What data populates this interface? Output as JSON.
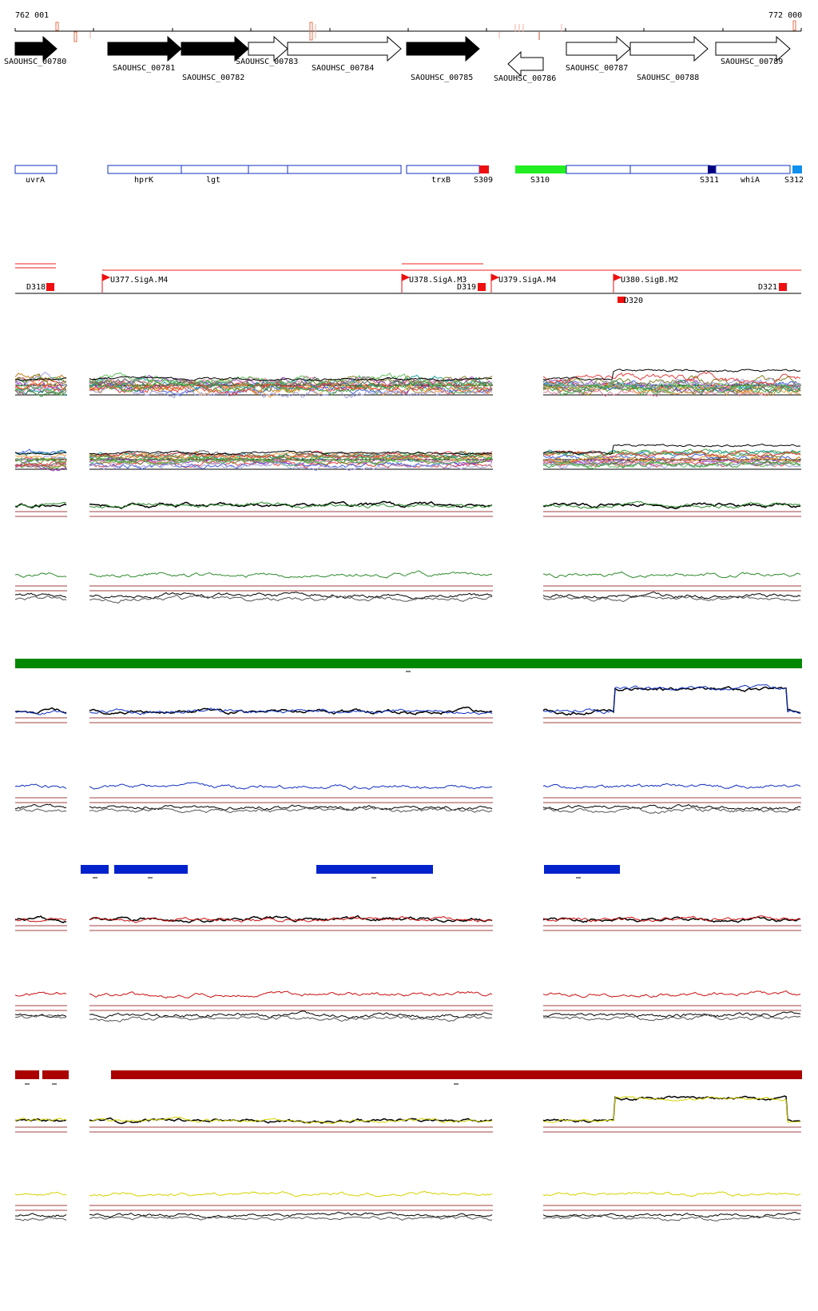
{
  "coord_range": {
    "start_label": "762 001",
    "end_label": "772 000"
  },
  "genes": [
    {
      "name": "SAOUHSC_00780",
      "strand": "+",
      "filled": true
    },
    {
      "name": "SAOUHSC_00781",
      "strand": "+",
      "filled": true
    },
    {
      "name": "SAOUHSC_00782",
      "strand": "+",
      "filled": true
    },
    {
      "name": "SAOUHSC_00783",
      "strand": "+",
      "filled": false
    },
    {
      "name": "SAOUHSC_00784",
      "strand": "+",
      "filled": false
    },
    {
      "name": "SAOUHSC_00785",
      "strand": "+",
      "filled": true
    },
    {
      "name": "SAOUHSC_00786",
      "strand": "-",
      "filled": false
    },
    {
      "name": "SAOUHSC_00787",
      "strand": "+",
      "filled": false
    },
    {
      "name": "SAOUHSC_00788",
      "strand": "+",
      "filled": false
    },
    {
      "name": "SAOUHSC_00789",
      "strand": "+",
      "filled": false
    }
  ],
  "features": [
    {
      "label": "uvrA"
    },
    {
      "label": "hprK"
    },
    {
      "label": "lgt"
    },
    {
      "label": "trxB"
    },
    {
      "label": "S309"
    },
    {
      "label": "S310"
    },
    {
      "label": "S311"
    },
    {
      "label": "whiA"
    },
    {
      "label": "S312"
    }
  ],
  "promoters": [
    {
      "label": "U377.SigA.M4"
    },
    {
      "label": "U378.SigA.M3"
    },
    {
      "label": "U379.SigA.M4"
    },
    {
      "label": "U380.SigB.M2"
    }
  ],
  "terminators": [
    {
      "label": "D318"
    },
    {
      "label": "D319"
    },
    {
      "label": "D320"
    },
    {
      "label": "D321"
    }
  ],
  "track_colors": {
    "green": "#2e8b2e",
    "blue": "#1030c0",
    "red": "#cc1010",
    "yellow": "#d4d400",
    "segment_green": "#008800",
    "segment_blue": "#0022cc",
    "segment_red": "#aa0000",
    "threshold": "#a04040"
  }
}
